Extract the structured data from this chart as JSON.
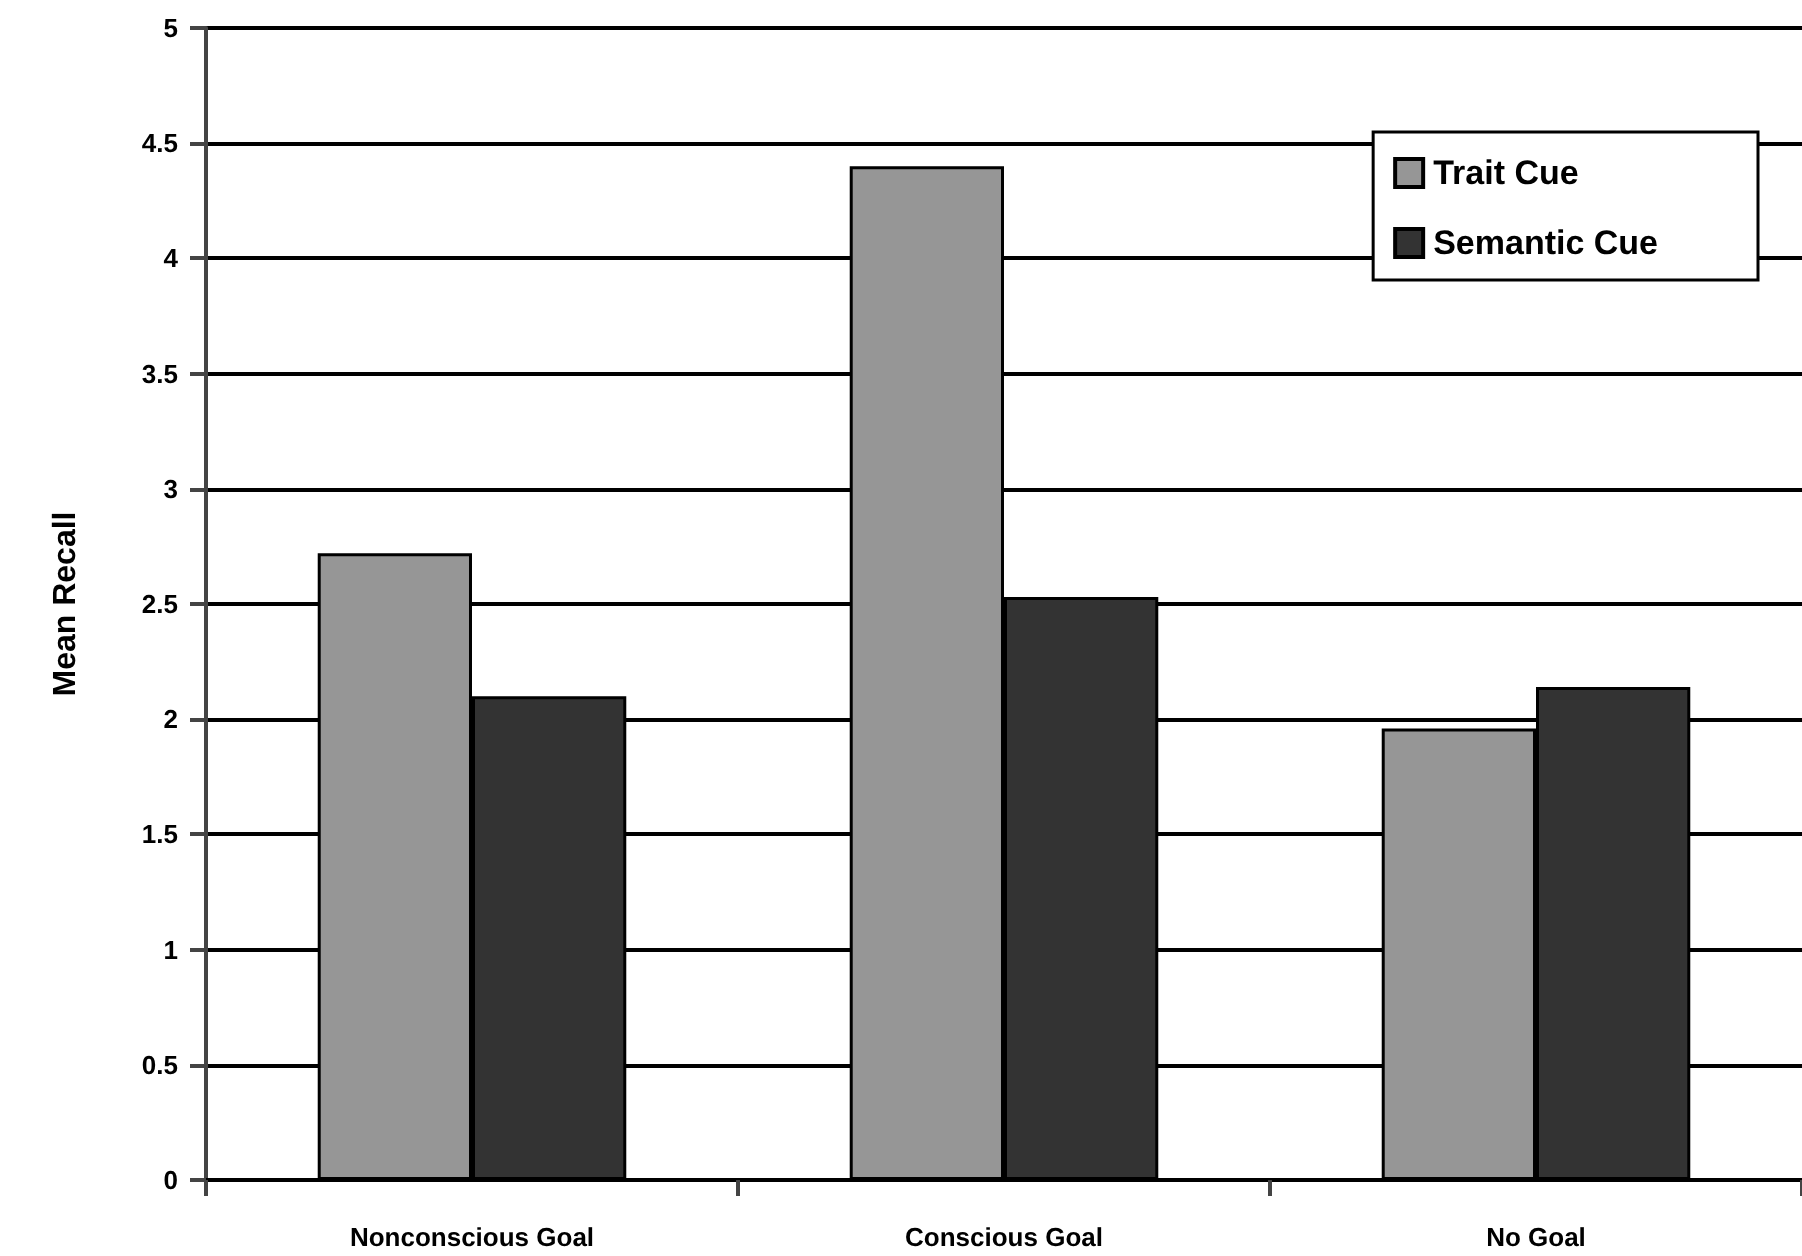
{
  "chart_data": {
    "type": "bar",
    "ylabel": "Mean Recall",
    "categories": [
      "Nonconscious Goal",
      "Conscious Goal",
      "No Goal"
    ],
    "series": [
      {
        "name": "Trait Cue",
        "color": "#969696",
        "values": [
          2.72,
          4.4,
          1.96
        ]
      },
      {
        "name": "Semantic Cue",
        "color": "#333333",
        "values": [
          2.1,
          2.53,
          2.14
        ]
      }
    ],
    "ylim": [
      0,
      5
    ],
    "yticks": [
      0,
      0.5,
      1,
      1.5,
      2,
      2.5,
      3,
      3.5,
      4,
      4.5,
      5
    ],
    "grid": "y",
    "legend": "top right"
  }
}
